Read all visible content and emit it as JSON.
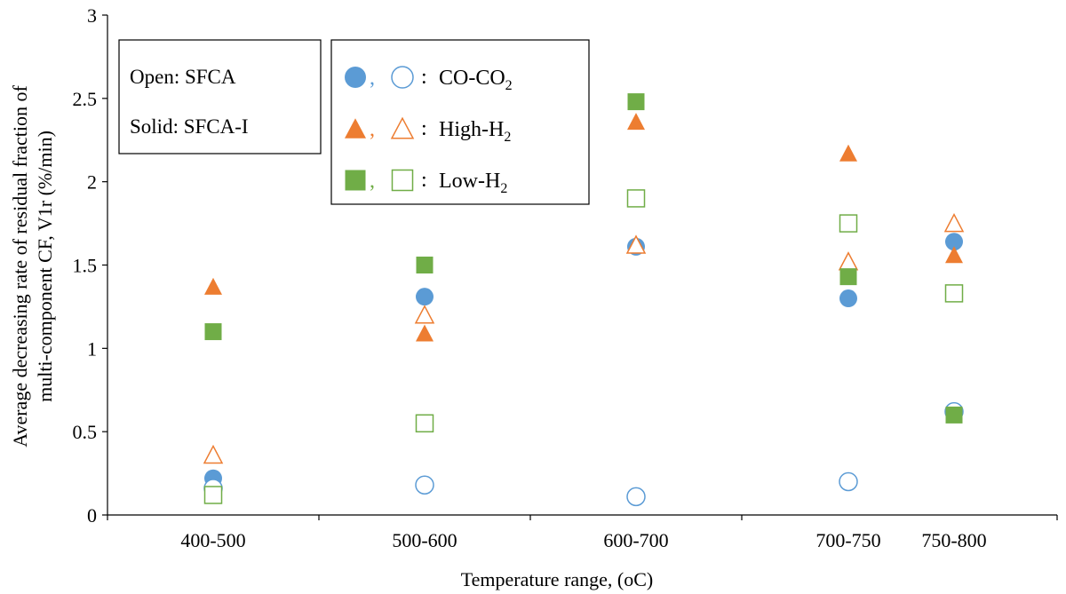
{
  "chart_data": {
    "type": "scatter",
    "title": "",
    "xlabel": "Temperature range, (oC)",
    "ylabel": "Average decreasing rate of residual fraction of multi-component CF, V1r (%/min)",
    "ylim": [
      0,
      3
    ],
    "yticks": [
      0,
      0.5,
      1,
      1.5,
      2,
      2.5,
      3
    ],
    "ytick_labels": [
      "0",
      "0.5",
      "1",
      "1.5",
      "2",
      "2.5",
      "3"
    ],
    "categories": [
      "400-500",
      "500-600",
      "600-700",
      "700-750",
      "750-800"
    ],
    "grid": false,
    "series": [
      {
        "name": "CO-CO2",
        "marker": "circle",
        "fill": "solid",
        "color": "#5b9bd5",
        "values": [
          0.22,
          1.31,
          1.61,
          1.3,
          1.64
        ]
      },
      {
        "name": "CO-CO2",
        "marker": "circle",
        "fill": "open",
        "color": "#5b9bd5",
        "values": [
          0.16,
          0.18,
          0.11,
          0.2,
          0.62
        ]
      },
      {
        "name": "High-H2",
        "marker": "triangle",
        "fill": "solid",
        "color": "#ed7d31",
        "values": [
          1.37,
          1.09,
          2.36,
          2.17,
          1.56
        ]
      },
      {
        "name": "High-H2",
        "marker": "triangle",
        "fill": "open",
        "color": "#ed7d31",
        "values": [
          0.36,
          1.2,
          1.62,
          1.52,
          1.75
        ]
      },
      {
        "name": "Low-H2",
        "marker": "square",
        "fill": "solid",
        "color": "#70ad47",
        "values": [
          1.1,
          1.5,
          2.48,
          1.43,
          0.6
        ]
      },
      {
        "name": "Low-H2",
        "marker": "square",
        "fill": "open",
        "color": "#70ad47",
        "values": [
          0.12,
          0.55,
          1.9,
          1.75,
          1.33
        ]
      }
    ],
    "legend_notes": [
      "Open: SFCA",
      "Solid: SFCA-I"
    ],
    "legend_entries": [
      {
        "marker": "circle",
        "color": "#5b9bd5",
        "label": "CO-CO",
        "sub": "2"
      },
      {
        "marker": "triangle",
        "color": "#ed7d31",
        "label": "High-H",
        "sub": "2"
      },
      {
        "marker": "square",
        "color": "#70ad47",
        "label": "Low-H",
        "sub": "2"
      }
    ],
    "legend_separator": ":",
    "legend_comma": ","
  }
}
